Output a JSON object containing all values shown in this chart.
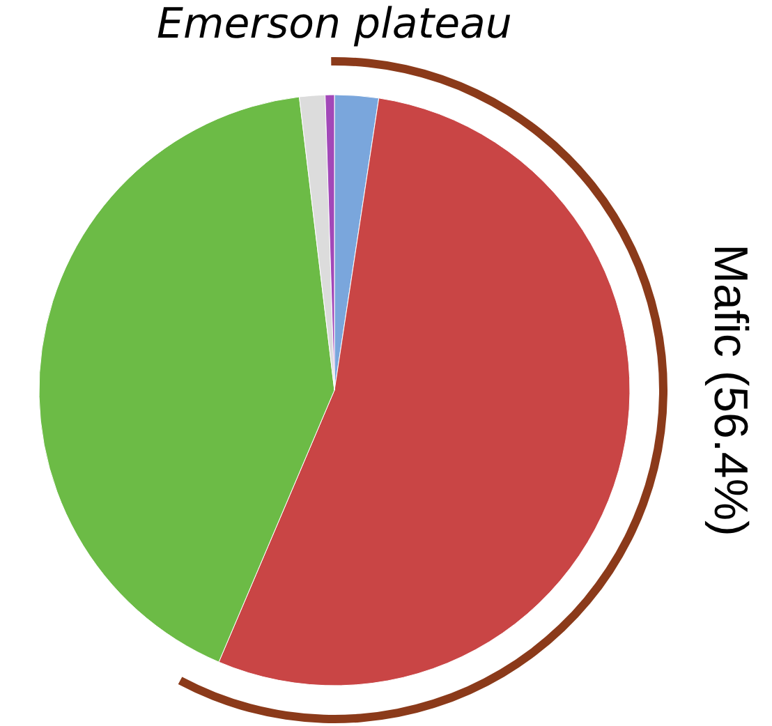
{
  "chart_data": {
    "type": "pie",
    "title": "Emerson plateau",
    "categories": [
      null,
      null,
      null,
      null,
      null
    ],
    "values": [
      2.4,
      54.0,
      41.7,
      1.4,
      0.5
    ],
    "colors": [
      "#7aa6dc",
      "#c94545",
      "#6cbb46",
      "#dcdcdc",
      "#a248b8"
    ],
    "annotations": [
      "Mafic (56.4%)"
    ]
  }
}
